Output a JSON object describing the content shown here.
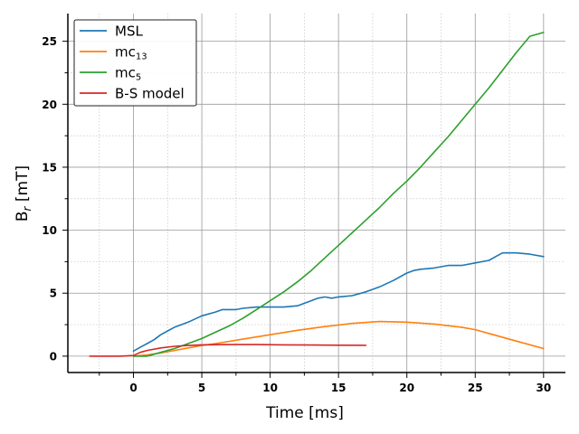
{
  "chart_data": {
    "type": "line",
    "title": "",
    "xlabel": "Time [ms]",
    "ylabel_base": "B",
    "ylabel_sub": "r",
    "ylabel_unit": " [mT]",
    "xlim": [
      -4.8,
      31.6
    ],
    "ylim": [
      -1.3,
      27.2
    ],
    "xticks": [
      0,
      5,
      10,
      15,
      20,
      25,
      30
    ],
    "yticks": [
      0,
      5,
      10,
      15,
      20,
      25
    ],
    "grid": true,
    "legend_position": "top-left",
    "series": [
      {
        "name": "MSL",
        "name_sub": "",
        "color": "#1f77b4",
        "x": [
          0,
          0.5,
          1,
          1.5,
          2,
          2.5,
          3,
          3.5,
          4,
          5,
          6,
          6.5,
          7,
          7.5,
          8,
          9,
          10,
          10.5,
          11,
          12,
          13,
          13.5,
          14,
          14.5,
          15,
          16,
          17,
          18,
          19,
          20,
          20.5,
          21,
          22,
          22.5,
          23,
          24,
          25,
          26,
          26.5,
          27,
          28,
          29,
          30
        ],
        "y": [
          0.4,
          0.7,
          1.0,
          1.3,
          1.7,
          2.0,
          2.3,
          2.5,
          2.7,
          3.2,
          3.5,
          3.7,
          3.7,
          3.7,
          3.8,
          3.9,
          3.9,
          3.9,
          3.9,
          4.0,
          4.4,
          4.6,
          4.7,
          4.6,
          4.7,
          4.8,
          5.1,
          5.5,
          6.0,
          6.6,
          6.8,
          6.9,
          7.0,
          7.1,
          7.2,
          7.2,
          7.4,
          7.6,
          7.9,
          8.2,
          8.2,
          8.1,
          7.9
        ]
      },
      {
        "name": "mc",
        "name_sub": "13",
        "color": "#ff7f0e",
        "x": [
          0,
          1,
          2,
          3,
          4,
          5,
          6,
          8,
          10,
          12,
          14,
          16,
          18,
          20,
          22,
          24,
          25,
          26,
          28,
          30
        ],
        "y": [
          0,
          0.1,
          0.25,
          0.45,
          0.65,
          0.85,
          1.0,
          1.35,
          1.7,
          2.05,
          2.35,
          2.6,
          2.75,
          2.7,
          2.55,
          2.3,
          2.1,
          1.8,
          1.2,
          0.6
        ]
      },
      {
        "name": "mc",
        "name_sub": "5",
        "color": "#2ca02c",
        "x": [
          0,
          1,
          2,
          3,
          4,
          5,
          6,
          7,
          8,
          9,
          10,
          11,
          12,
          13,
          14,
          15,
          16,
          17,
          18,
          19,
          20,
          21,
          22,
          23,
          24,
          25,
          26,
          27,
          28,
          29,
          30
        ],
        "y": [
          0.0,
          0.0,
          0.3,
          0.6,
          1.0,
          1.4,
          1.9,
          2.4,
          3.0,
          3.7,
          4.4,
          5.1,
          5.9,
          6.8,
          7.8,
          8.8,
          9.8,
          10.8,
          11.8,
          12.9,
          13.9,
          15.0,
          16.2,
          17.4,
          18.7,
          20.0,
          21.3,
          22.7,
          24.1,
          25.4,
          25.7
        ]
      },
      {
        "name": "B-S model",
        "name_sub": "",
        "color": "#d62728",
        "x": [
          -3.2,
          -1,
          0,
          0.5,
          1,
          2,
          3,
          4,
          5,
          7,
          9,
          11,
          13,
          15,
          17
        ],
        "y": [
          0,
          0,
          0.05,
          0.3,
          0.45,
          0.65,
          0.78,
          0.85,
          0.9,
          0.92,
          0.92,
          0.9,
          0.88,
          0.87,
          0.86
        ]
      }
    ]
  }
}
